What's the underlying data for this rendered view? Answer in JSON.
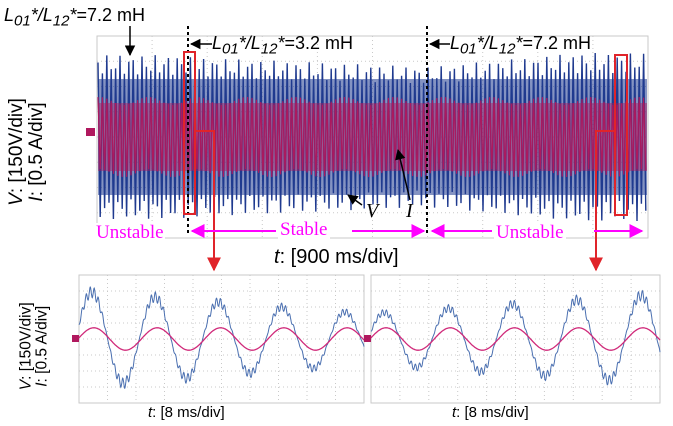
{
  "colors": {
    "voltage_trace": "#1f3a8f",
    "voltage_trace_light": "#4a6fb0",
    "current_trace": "#b0185e",
    "current_trace_light": "#d02a7a",
    "grid": "#c9c9c9",
    "highlight_box": "#e0242a",
    "arrow_red": "#e0242a",
    "stability_arrow": "#ff00ff"
  },
  "main_scope": {
    "y_axis": {
      "v_label": "V",
      "v_scale": ": [150V/div]",
      "i_label": "I",
      "i_scale": ": [0.5 A/div]"
    },
    "x_axis": {
      "t_label": "t",
      "t_scale": ": [900 ms/div]"
    },
    "trace_labels": {
      "voltage": "V",
      "current": "I"
    },
    "inductance_annotations": [
      {
        "symbol": "L01*/L12*",
        "sym1": "L",
        "sub1": "01",
        "sym2": "L",
        "sub2": "12",
        "value": "=7.2 mH"
      },
      {
        "symbol": "L01*/L12*",
        "sym1": "L",
        "sub1": "01",
        "sym2": "L",
        "sub2": "12",
        "value": "=3.2 mH"
      },
      {
        "symbol": "L01*/L12*",
        "sym1": "L",
        "sub1": "01",
        "sym2": "L",
        "sub2": "12",
        "value": "=7.2 mH"
      }
    ],
    "stability_segments": [
      "Unstable",
      "Stable",
      "Unstable"
    ]
  },
  "zoom_scopes": [
    {
      "x_axis": {
        "t_label": "t",
        "t_scale": ": [8 ms/div]"
      }
    },
    {
      "x_axis": {
        "t_label": "t",
        "t_scale": ": [8 ms/div]"
      }
    }
  ],
  "zoom_y_axis": {
    "v_label": "V",
    "v_scale": ": [150V/div]",
    "i_label": "I",
    "i_scale": ": [0.5 A/div]"
  },
  "chart_data": [
    {
      "type": "line",
      "title": "",
      "xlabel": "t: [900 ms/div]",
      "ylabel": "V: [150V/div] I: [0.5 A/div]",
      "grid": true,
      "series": [
        {
          "name": "V",
          "description_values": "high-frequency AC waveform; envelope shrinks during the 3.2 mH interval and grows after switching back to 7.2 mH"
        },
        {
          "name": "I",
          "description_values": "high-frequency AC current of roughly constant amplitude"
        }
      ],
      "regions": [
        {
          "label": "Unstable",
          "inductance": "L01*/L12*=7.2 mH"
        },
        {
          "label": "Stable",
          "inductance": "L01*/L12*=3.2 mH"
        },
        {
          "label": "Unstable",
          "inductance": "L01*/L12*=7.2 mH"
        }
      ]
    },
    {
      "type": "line",
      "xlabel": "t: [8 ms/div]",
      "ylabel": "V: [150V/div] I: [0.5 A/div]",
      "grid": true,
      "x": [
        0,
        1,
        2,
        3,
        4,
        5,
        6,
        7,
        8,
        9,
        10
      ],
      "series": [
        {
          "name": "V",
          "cycles": 4.5,
          "peak_divs_first_cycles": 3.0,
          "peak_divs_last_cycles": 1.6
        },
        {
          "name": "I",
          "cycles": 4.5,
          "peak_divs": 0.7
        }
      ]
    },
    {
      "type": "line",
      "xlabel": "t: [8 ms/div]",
      "ylabel": "V: [150V/div] I: [0.5 A/div]",
      "grid": true,
      "x": [
        0,
        1,
        2,
        3,
        4,
        5,
        6,
        7,
        8,
        9,
        10
      ],
      "series": [
        {
          "name": "V",
          "cycles": 4.5,
          "peak_divs_first_cycles": 1.6,
          "peak_divs_last_cycles": 2.8
        },
        {
          "name": "I",
          "cycles": 4.5,
          "peak_divs": 0.7
        }
      ]
    }
  ]
}
